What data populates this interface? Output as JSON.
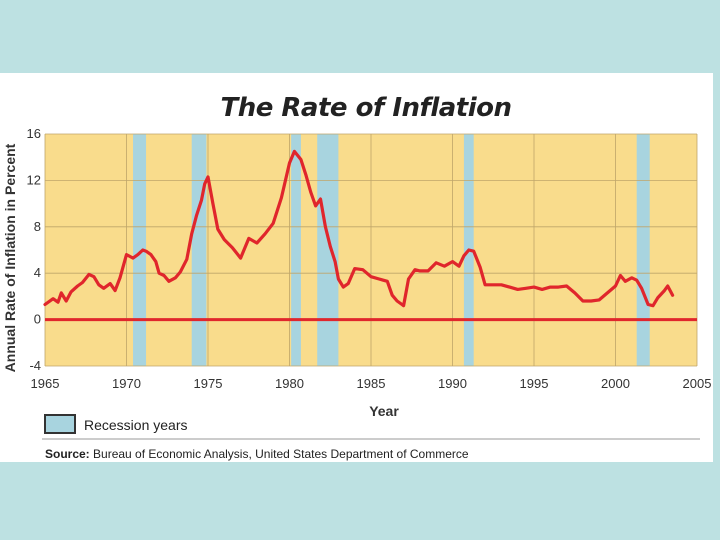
{
  "chart_data": {
    "type": "line",
    "title": "The Rate of Inflation",
    "xlabel": "Year",
    "ylabel": "Annual Rate of Inflation in Percent",
    "xlim": [
      1965,
      2005
    ],
    "ylim": [
      -4,
      16
    ],
    "x_ticks": [
      1965,
      1970,
      1975,
      1980,
      1985,
      1990,
      1995,
      2000,
      2005
    ],
    "y_ticks": [
      -4,
      0,
      4,
      8,
      12,
      16
    ],
    "grid": true,
    "reference_line_y": 0,
    "recessions": [
      {
        "start": 1970.4,
        "end": 1971.2
      },
      {
        "start": 1974.0,
        "end": 1974.9
      },
      {
        "start": 1980.1,
        "end": 1980.7
      },
      {
        "start": 1981.7,
        "end": 1983.0
      },
      {
        "start": 1990.7,
        "end": 1991.3
      },
      {
        "start": 2001.3,
        "end": 2002.1
      }
    ],
    "series": [
      {
        "name": "Inflation rate",
        "color": "#e0262c",
        "points": [
          [
            1965.0,
            1.3
          ],
          [
            1965.5,
            1.8
          ],
          [
            1965.8,
            1.5
          ],
          [
            1966.0,
            2.3
          ],
          [
            1966.3,
            1.6
          ],
          [
            1966.6,
            2.4
          ],
          [
            1967.0,
            2.9
          ],
          [
            1967.3,
            3.2
          ],
          [
            1967.7,
            3.9
          ],
          [
            1968.0,
            3.7
          ],
          [
            1968.3,
            3.0
          ],
          [
            1968.6,
            2.7
          ],
          [
            1969.0,
            3.1
          ],
          [
            1969.3,
            2.5
          ],
          [
            1969.6,
            3.6
          ],
          [
            1970.0,
            5.6
          ],
          [
            1970.4,
            5.3
          ],
          [
            1970.7,
            5.6
          ],
          [
            1971.0,
            6.0
          ],
          [
            1971.2,
            5.9
          ],
          [
            1971.5,
            5.6
          ],
          [
            1971.8,
            5.0
          ],
          [
            1972.0,
            4.0
          ],
          [
            1972.3,
            3.8
          ],
          [
            1972.6,
            3.3
          ],
          [
            1973.0,
            3.6
          ],
          [
            1973.3,
            4.1
          ],
          [
            1973.7,
            5.2
          ],
          [
            1974.0,
            7.4
          ],
          [
            1974.3,
            9.0
          ],
          [
            1974.6,
            10.3
          ],
          [
            1974.8,
            11.7
          ],
          [
            1975.0,
            12.3
          ],
          [
            1975.3,
            10.0
          ],
          [
            1975.6,
            7.8
          ],
          [
            1976.0,
            6.9
          ],
          [
            1976.5,
            6.2
          ],
          [
            1977.0,
            5.3
          ],
          [
            1977.5,
            7.0
          ],
          [
            1978.0,
            6.6
          ],
          [
            1978.5,
            7.4
          ],
          [
            1979.0,
            8.3
          ],
          [
            1979.5,
            10.5
          ],
          [
            1980.0,
            13.5
          ],
          [
            1980.3,
            14.5
          ],
          [
            1980.7,
            13.8
          ],
          [
            1981.0,
            12.5
          ],
          [
            1981.3,
            11.0
          ],
          [
            1981.6,
            9.8
          ],
          [
            1981.9,
            10.4
          ],
          [
            1982.2,
            8.0
          ],
          [
            1982.5,
            6.3
          ],
          [
            1982.8,
            5.0
          ],
          [
            1983.0,
            3.5
          ],
          [
            1983.3,
            2.8
          ],
          [
            1983.6,
            3.1
          ],
          [
            1984.0,
            4.4
          ],
          [
            1984.5,
            4.3
          ],
          [
            1985.0,
            3.7
          ],
          [
            1985.5,
            3.5
          ],
          [
            1986.0,
            3.3
          ],
          [
            1986.3,
            2.1
          ],
          [
            1986.6,
            1.6
          ],
          [
            1986.9,
            1.3
          ],
          [
            1987.0,
            1.2
          ],
          [
            1987.3,
            3.5
          ],
          [
            1987.7,
            4.3
          ],
          [
            1988.0,
            4.2
          ],
          [
            1988.5,
            4.2
          ],
          [
            1989.0,
            4.9
          ],
          [
            1989.5,
            4.6
          ],
          [
            1990.0,
            5.0
          ],
          [
            1990.4,
            4.6
          ],
          [
            1990.7,
            5.5
          ],
          [
            1991.0,
            6.0
          ],
          [
            1991.3,
            5.9
          ],
          [
            1991.7,
            4.5
          ],
          [
            1992.0,
            3.0
          ],
          [
            1992.5,
            3.0
          ],
          [
            1993.0,
            3.0
          ],
          [
            1993.5,
            2.8
          ],
          [
            1994.0,
            2.6
          ],
          [
            1994.5,
            2.7
          ],
          [
            1995.0,
            2.8
          ],
          [
            1995.5,
            2.6
          ],
          [
            1996.0,
            2.8
          ],
          [
            1996.5,
            2.8
          ],
          [
            1997.0,
            2.9
          ],
          [
            1997.5,
            2.3
          ],
          [
            1998.0,
            1.6
          ],
          [
            1998.5,
            1.6
          ],
          [
            1999.0,
            1.7
          ],
          [
            1999.5,
            2.3
          ],
          [
            2000.0,
            2.9
          ],
          [
            2000.3,
            3.8
          ],
          [
            2000.6,
            3.3
          ],
          [
            2001.0,
            3.6
          ],
          [
            2001.3,
            3.4
          ],
          [
            2001.6,
            2.7
          ],
          [
            2002.0,
            1.3
          ],
          [
            2002.3,
            1.2
          ],
          [
            2002.6,
            1.9
          ],
          [
            2003.0,
            2.5
          ],
          [
            2003.2,
            2.9
          ],
          [
            2003.5,
            2.1
          ]
        ]
      }
    ],
    "legend": {
      "label": "Recession years",
      "color": "#a8d4df",
      "placement": "bottom-left"
    },
    "source_label": "Source:",
    "source_text": "Bureau of Economic Analysis, United States Department of Commerce"
  },
  "colors": {
    "plot_background": "#f9dc8c",
    "grid": "#bfa56a",
    "recession": "#a8d4df",
    "series": "#e0262c",
    "zero_line": "#e0262c",
    "page_background": "#bde1e2"
  }
}
